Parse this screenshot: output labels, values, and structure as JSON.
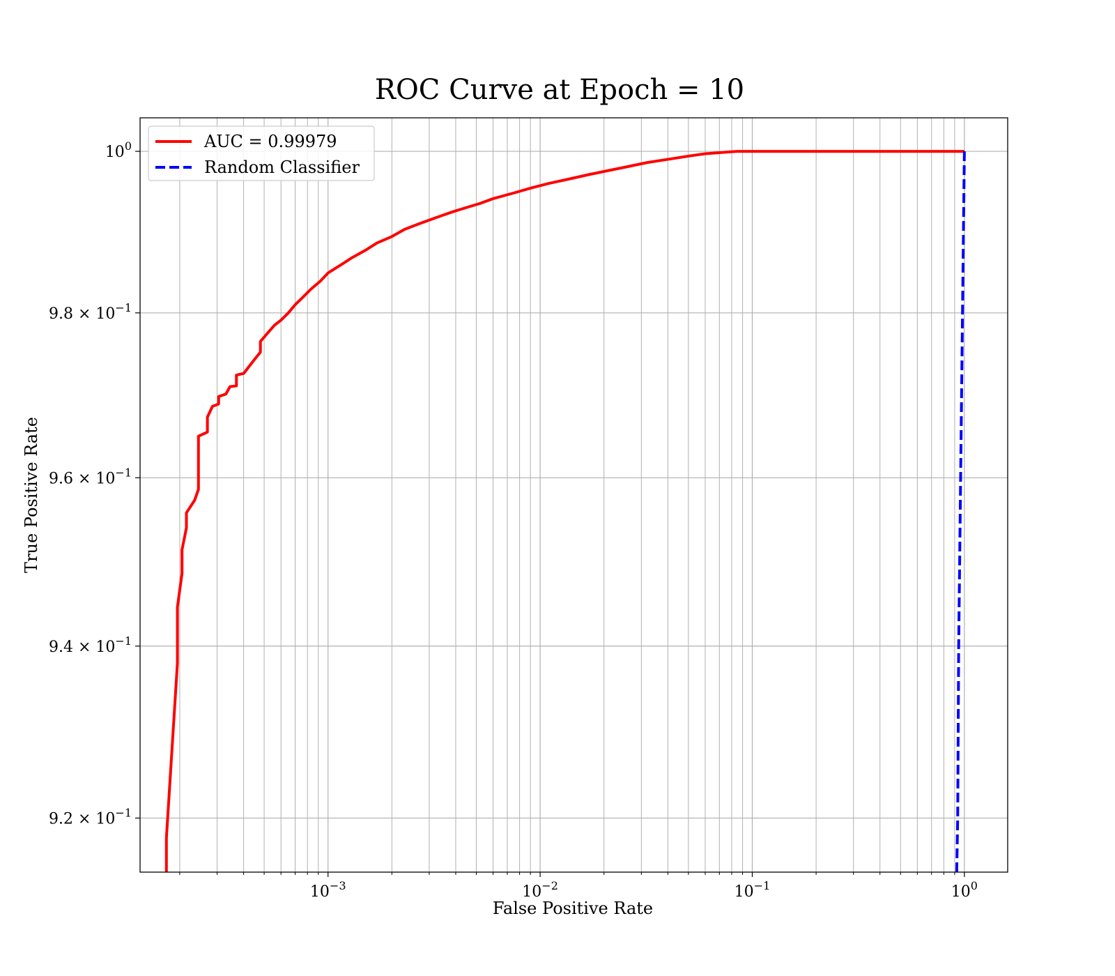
{
  "chart_data": {
    "type": "line",
    "title": "ROC Curve at Epoch = 10",
    "xlabel": "False Positive Rate",
    "ylabel": "True Positive Rate",
    "xscale": "log",
    "yscale": "log",
    "xlim": [
      0.00013,
      1.6
    ],
    "ylim": [
      0.9138,
      1.0042
    ],
    "grid": true,
    "legend_position": "top-left",
    "x_ticks": [
      {
        "value": 0.001,
        "base": "10",
        "exp": "−3"
      },
      {
        "value": 0.01,
        "base": "10",
        "exp": "−2"
      },
      {
        "value": 0.1,
        "base": "10",
        "exp": "−1"
      },
      {
        "value": 1,
        "base": "10",
        "exp": "0"
      }
    ],
    "y_ticks": [
      {
        "value": 0.92,
        "base": "9.2 × 10",
        "exp": "−1"
      },
      {
        "value": 0.94,
        "base": "9.4 × 10",
        "exp": "−1"
      },
      {
        "value": 0.96,
        "base": "9.6 × 10",
        "exp": "−1"
      },
      {
        "value": 0.98,
        "base": "9.8 × 10",
        "exp": "−1"
      },
      {
        "value": 1.0,
        "base": "10",
        "exp": "0"
      }
    ],
    "series": [
      {
        "name": "AUC = 0.99979",
        "color": "#ff0000",
        "dash": "solid",
        "points": [
          [
            0.000173,
            0.9138
          ],
          [
            0.000173,
            0.9177
          ],
          [
            0.000195,
            0.938
          ],
          [
            0.000195,
            0.9446
          ],
          [
            0.000205,
            0.9486
          ],
          [
            0.000205,
            0.9514
          ],
          [
            0.000215,
            0.954
          ],
          [
            0.000215,
            0.9558
          ],
          [
            0.000235,
            0.9573
          ],
          [
            0.000245,
            0.9586
          ],
          [
            0.000245,
            0.965
          ],
          [
            0.00027,
            0.9655
          ],
          [
            0.00027,
            0.9673
          ],
          [
            0.000285,
            0.9686
          ],
          [
            0.000305,
            0.9689
          ],
          [
            0.000305,
            0.9698
          ],
          [
            0.00033,
            0.9701
          ],
          [
            0.000345,
            0.971
          ],
          [
            0.00037,
            0.9711
          ],
          [
            0.00037,
            0.9724
          ],
          [
            0.0004,
            0.9726
          ],
          [
            0.00042,
            0.9733
          ],
          [
            0.00045,
            0.9743
          ],
          [
            0.00048,
            0.9752
          ],
          [
            0.00048,
            0.9765
          ],
          [
            0.00053,
            0.9778
          ],
          [
            0.00056,
            0.9785
          ],
          [
            0.0006,
            0.9791
          ],
          [
            0.00065,
            0.98
          ],
          [
            0.0007,
            0.981
          ],
          [
            0.00076,
            0.9819
          ],
          [
            0.00083,
            0.9829
          ],
          [
            0.00092,
            0.9839
          ],
          [
            0.001,
            0.9849
          ],
          [
            0.00115,
            0.9859
          ],
          [
            0.0013,
            0.9868
          ],
          [
            0.0015,
            0.9877
          ],
          [
            0.0017,
            0.9886
          ],
          [
            0.002,
            0.9894
          ],
          [
            0.0023,
            0.9903
          ],
          [
            0.0027,
            0.991
          ],
          [
            0.0032,
            0.9917
          ],
          [
            0.0038,
            0.9924
          ],
          [
            0.0045,
            0.993
          ],
          [
            0.0052,
            0.9935
          ],
          [
            0.006,
            0.9941
          ],
          [
            0.0075,
            0.9948
          ],
          [
            0.009,
            0.9954
          ],
          [
            0.011,
            0.996
          ],
          [
            0.014,
            0.9966
          ],
          [
            0.017,
            0.9971
          ],
          [
            0.021,
            0.9976
          ],
          [
            0.026,
            0.9981
          ],
          [
            0.032,
            0.9986
          ],
          [
            0.04,
            0.999
          ],
          [
            0.05,
            0.9994
          ],
          [
            0.06,
            0.9997
          ],
          [
            0.075,
            0.9999
          ],
          [
            0.085,
            1.0
          ],
          [
            1.0,
            1.0
          ]
        ]
      },
      {
        "name": "Random Classifier",
        "color": "#0000ff",
        "dash": "dashed",
        "points": [
          [
            0.92,
            0.9138
          ],
          [
            0.93,
            0.92
          ],
          [
            0.94,
            0.94
          ],
          [
            0.96,
            0.96
          ],
          [
            0.98,
            0.98
          ],
          [
            1.0,
            1.0
          ]
        ]
      }
    ]
  }
}
